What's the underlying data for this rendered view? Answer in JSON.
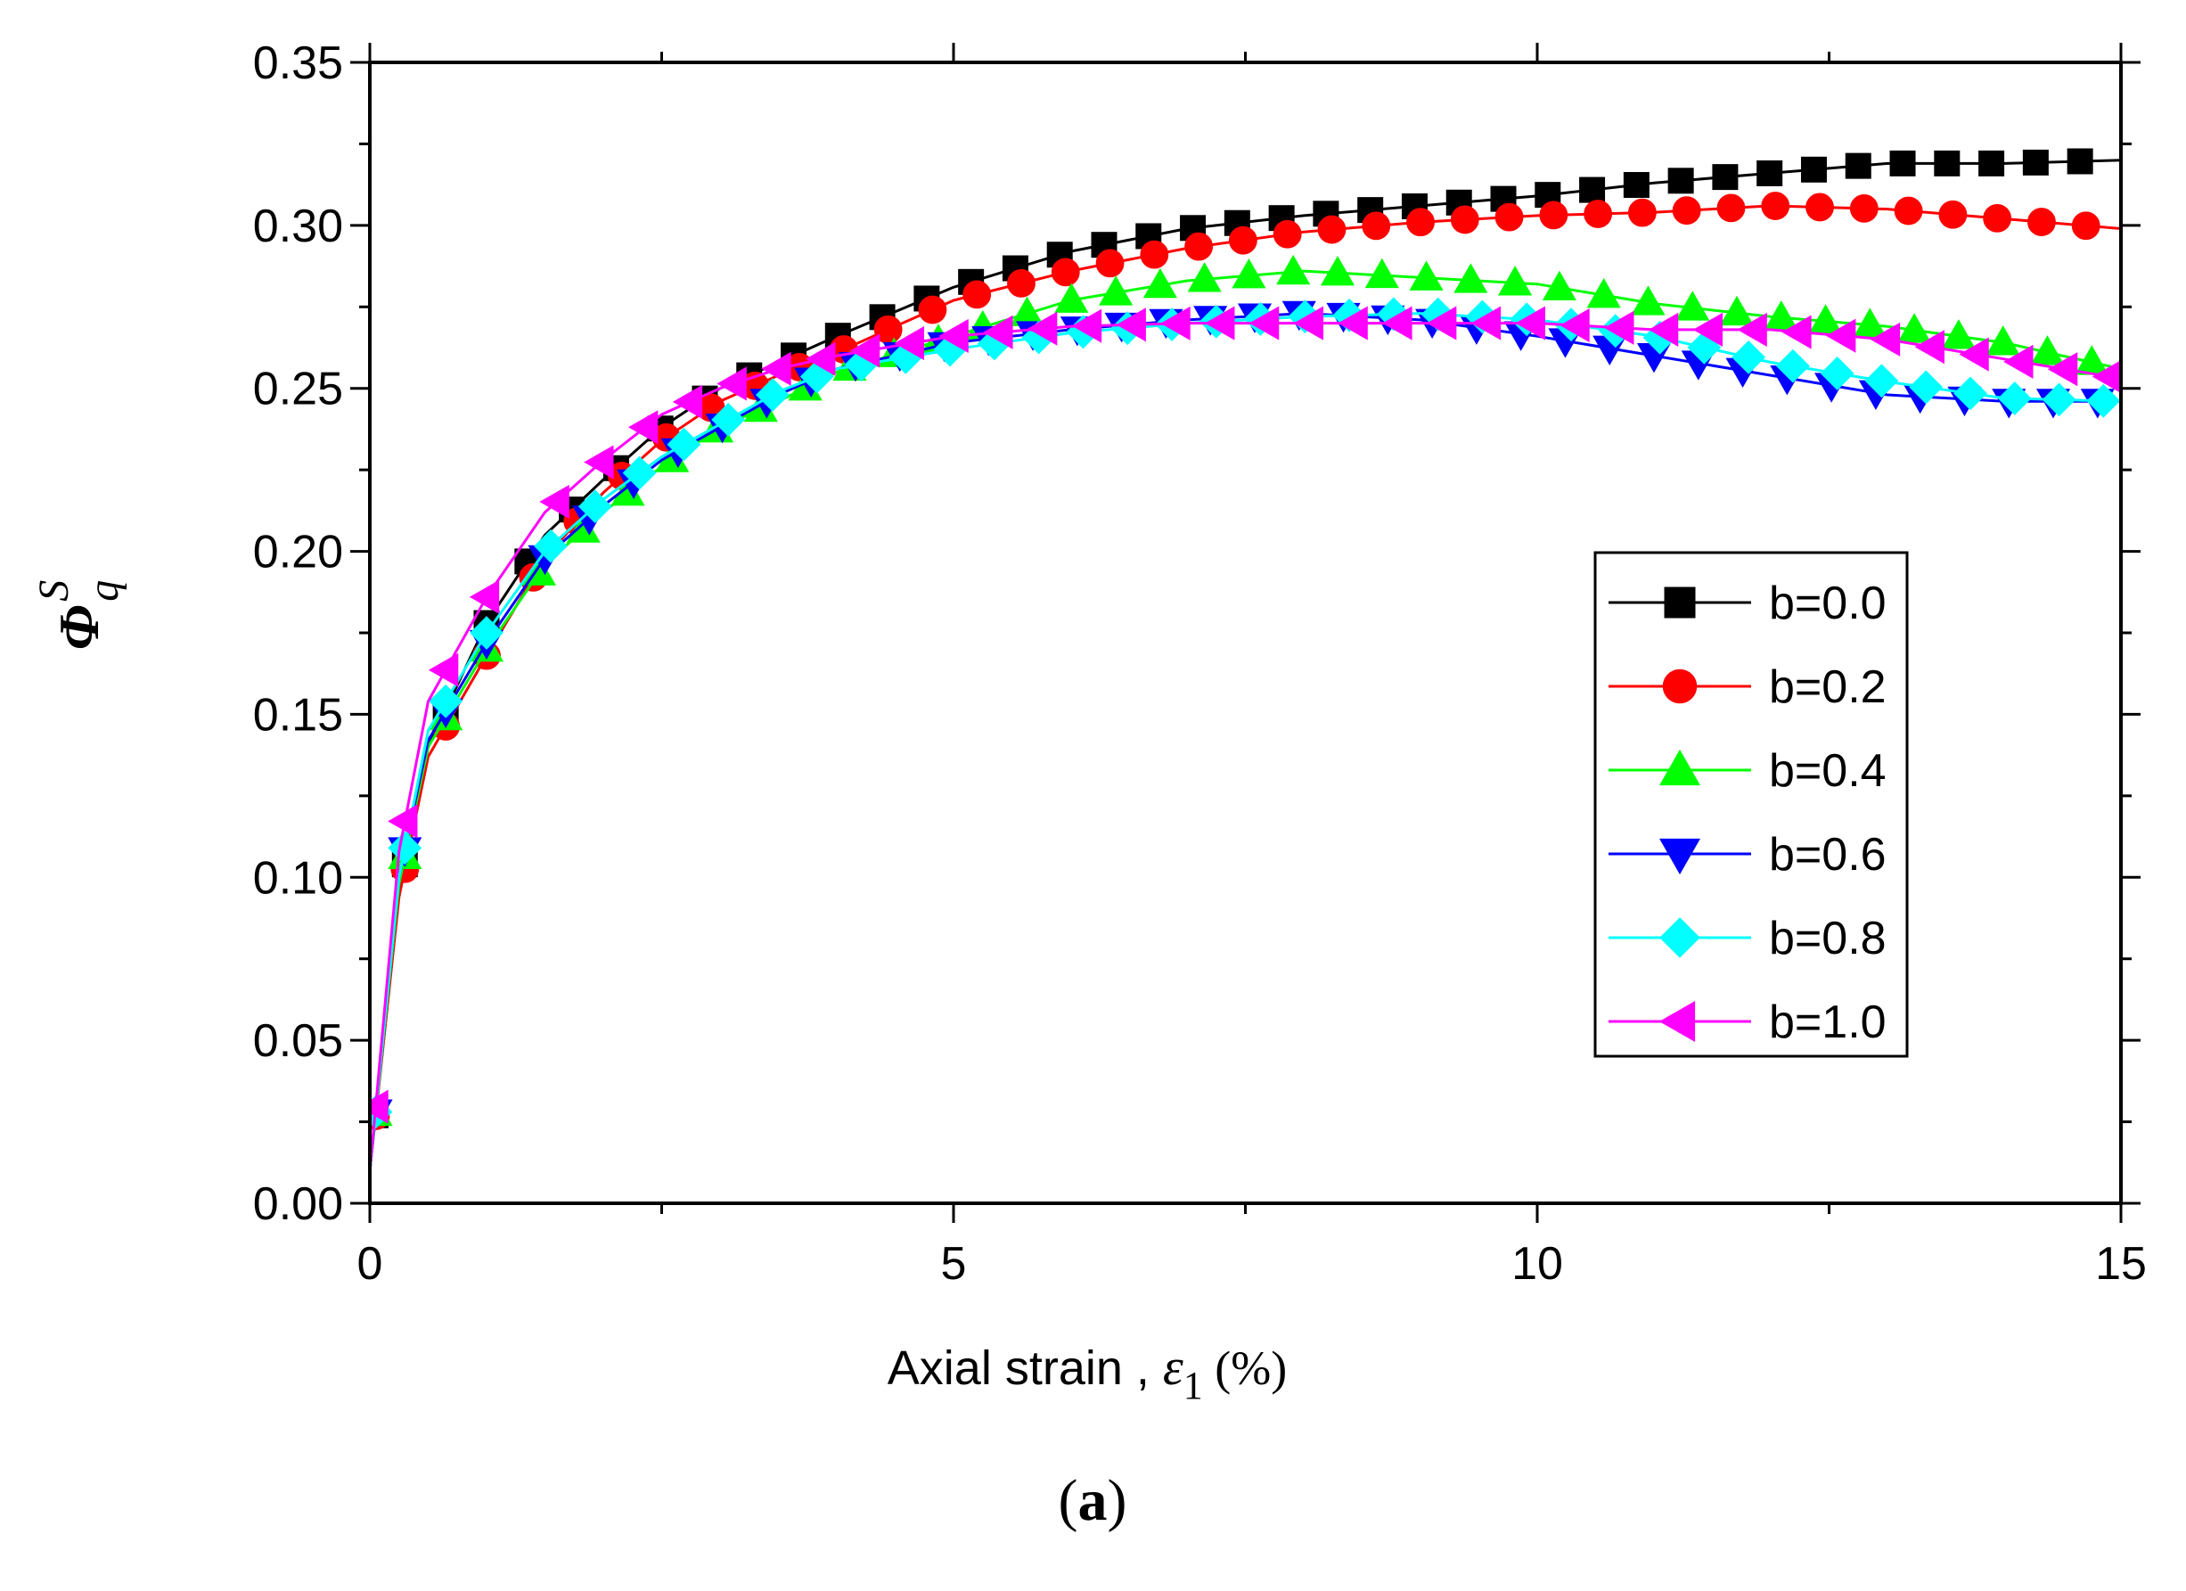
{
  "chart_data": {
    "type": "line",
    "caption": {
      "letter": "a",
      "open": "(",
      "close": ")"
    },
    "xlabel": {
      "prefix": "Axial  strain , ",
      "symbol": "ε",
      "subscript": "1",
      "suffix": " (%)"
    },
    "ylabel": {
      "symbol": "Φ",
      "superscript": "S",
      "subscript": "q"
    },
    "xlim": [
      0,
      15
    ],
    "ylim": [
      0,
      0.35
    ],
    "x_ticks": [
      0,
      5,
      10,
      15
    ],
    "x_tick_labels": [
      "0",
      "5",
      "10",
      "15"
    ],
    "y_ticks": [
      0,
      0.05,
      0.1,
      0.15,
      0.2,
      0.25,
      0.3,
      0.35
    ],
    "y_tick_labels": [
      "0.00",
      "0.05",
      "0.10",
      "0.15",
      "0.20",
      "0.25",
      "0.30",
      "0.35"
    ],
    "legend_position": "right-middle",
    "series": [
      {
        "name": "b=0.0",
        "color": "#000000",
        "marker": "square",
        "x": [
          0,
          0.25,
          0.5,
          1,
          1.5,
          2,
          2.5,
          3,
          3.5,
          4,
          5,
          6,
          7,
          8,
          9,
          10,
          11,
          12,
          13,
          14,
          15
        ],
        "y": [
          0.01,
          0.095,
          0.14,
          0.178,
          0.205,
          0.222,
          0.238,
          0.25,
          0.258,
          0.266,
          0.281,
          0.292,
          0.299,
          0.303,
          0.306,
          0.309,
          0.313,
          0.316,
          0.319,
          0.319,
          0.32
        ]
      },
      {
        "name": "b=0.2",
        "color": "#ff0000",
        "marker": "circle",
        "x": [
          0,
          0.25,
          0.5,
          1,
          1.5,
          2,
          2.5,
          3,
          3.5,
          4,
          5,
          6,
          7,
          8,
          9,
          10,
          11,
          12,
          13,
          14,
          15
        ],
        "y": [
          0.01,
          0.094,
          0.137,
          0.168,
          0.198,
          0.218,
          0.234,
          0.246,
          0.254,
          0.261,
          0.277,
          0.286,
          0.293,
          0.298,
          0.301,
          0.303,
          0.304,
          0.306,
          0.305,
          0.302,
          0.299
        ]
      },
      {
        "name": "b=0.4",
        "color": "#00ff00",
        "marker": "triangle-up",
        "x": [
          0,
          0.25,
          0.5,
          1,
          1.5,
          2,
          2.5,
          3,
          3.5,
          4,
          5,
          6,
          7,
          8,
          9,
          10,
          11,
          12,
          13,
          14,
          15
        ],
        "y": [
          0.01,
          0.098,
          0.14,
          0.17,
          0.196,
          0.212,
          0.226,
          0.238,
          0.246,
          0.255,
          0.266,
          0.277,
          0.283,
          0.286,
          0.284,
          0.282,
          0.276,
          0.272,
          0.269,
          0.264,
          0.256
        ]
      },
      {
        "name": "b=0.6",
        "color": "#0000ff",
        "marker": "triangle-down",
        "x": [
          0,
          0.25,
          0.5,
          1,
          1.5,
          2,
          2.5,
          3,
          3.5,
          4,
          5,
          6,
          7,
          8,
          9,
          10,
          11,
          12,
          13,
          14,
          15
        ],
        "y": [
          0.01,
          0.1,
          0.142,
          0.172,
          0.198,
          0.214,
          0.228,
          0.238,
          0.248,
          0.256,
          0.264,
          0.268,
          0.271,
          0.273,
          0.271,
          0.266,
          0.26,
          0.254,
          0.248,
          0.246,
          0.246
        ]
      },
      {
        "name": "b=0.8",
        "color": "#00ffff",
        "marker": "diamond",
        "x": [
          0,
          0.25,
          0.5,
          1,
          1.5,
          2,
          2.5,
          3,
          3.5,
          4,
          5,
          6,
          7,
          8,
          9,
          10,
          11,
          12,
          13,
          14,
          15
        ],
        "y": [
          0.01,
          0.1,
          0.145,
          0.175,
          0.2,
          0.216,
          0.229,
          0.239,
          0.249,
          0.256,
          0.262,
          0.267,
          0.27,
          0.272,
          0.273,
          0.271,
          0.266,
          0.258,
          0.252,
          0.247,
          0.246
        ]
      },
      {
        "name": "b=1.0",
        "color": "#ff00ff",
        "marker": "triangle-left",
        "x": [
          0,
          0.25,
          0.5,
          1,
          1.5,
          2,
          2.5,
          3,
          3.5,
          4,
          5,
          6,
          7,
          8,
          9,
          10,
          11,
          12,
          13,
          14,
          15
        ],
        "y": [
          0.01,
          0.108,
          0.154,
          0.186,
          0.212,
          0.228,
          0.242,
          0.25,
          0.256,
          0.26,
          0.266,
          0.269,
          0.27,
          0.27,
          0.27,
          0.27,
          0.268,
          0.268,
          0.265,
          0.259,
          0.253
        ]
      }
    ]
  }
}
